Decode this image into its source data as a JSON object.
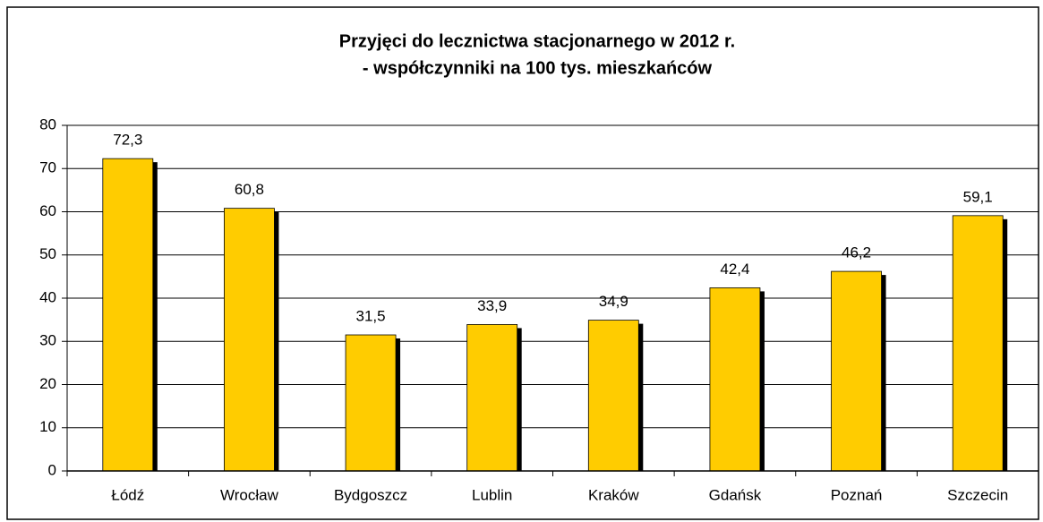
{
  "chart_data": {
    "type": "bar",
    "title": [
      "Przyjęci do lecznictwa stacjonarnego w 2012 r.",
      "- współczynniki na 100 tys. mieszkańców"
    ],
    "categories": [
      "Łódź",
      "Wrocław",
      "Bydgoszcz",
      "Lublin",
      "Kraków",
      "Gdańsk",
      "Poznań",
      "Szczecin"
    ],
    "values": [
      72.3,
      60.8,
      31.5,
      33.9,
      34.9,
      42.4,
      46.2,
      59.1
    ],
    "value_labels": [
      "72,3",
      "60,8",
      "31,5",
      "33,9",
      "34,9",
      "42,4",
      "46,2",
      "59,1"
    ],
    "color": "#ffcc00",
    "ylim": [
      0,
      80
    ],
    "yticks": [
      0,
      10,
      20,
      30,
      40,
      50,
      60,
      70,
      80
    ],
    "grid": true
  }
}
